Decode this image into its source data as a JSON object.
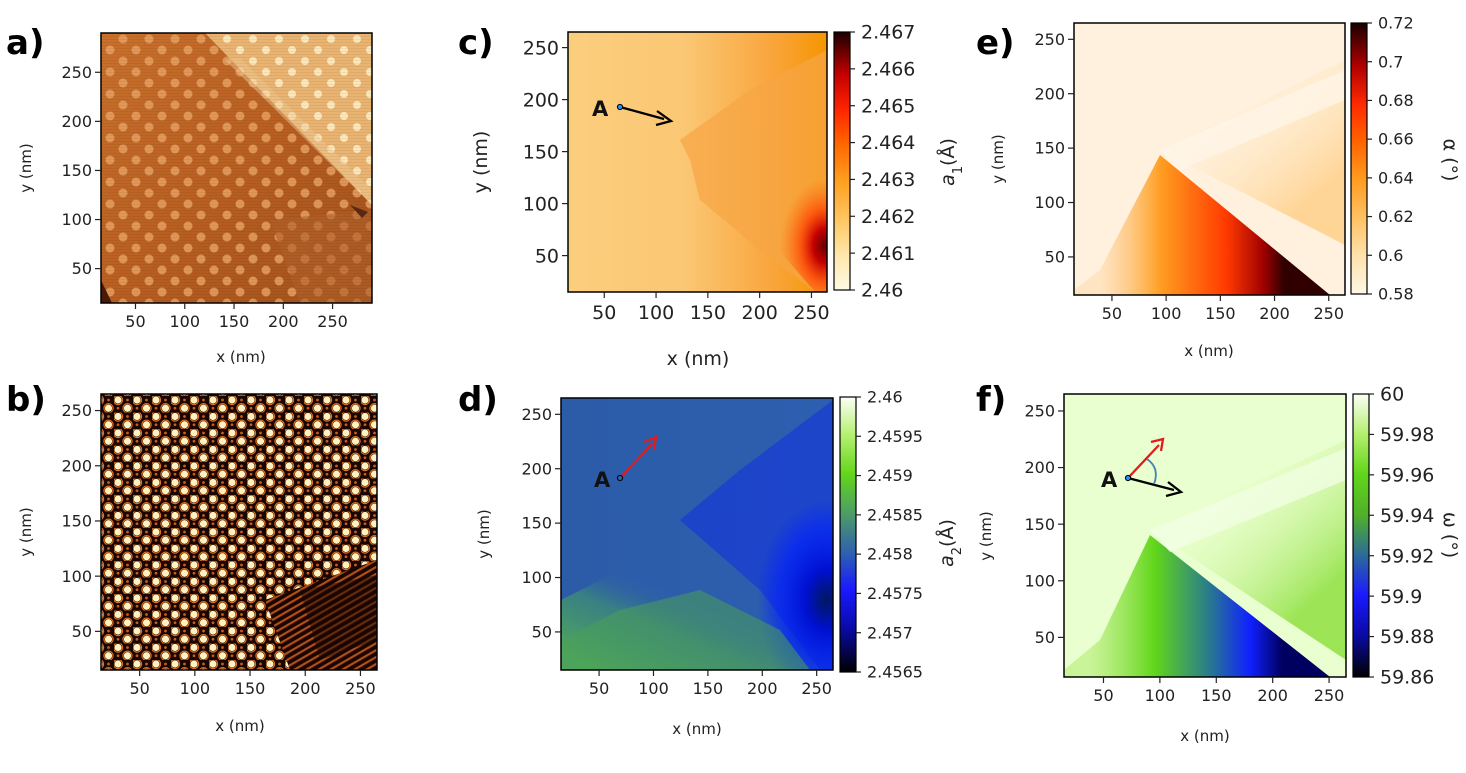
{
  "chart_data": [
    {
      "id": "a",
      "panel_label": "a)",
      "type": "heatmap",
      "description_kind": "stm_topography",
      "xlabel": "x (nm)",
      "ylabel": "y (nm)",
      "xlim": [
        15,
        290
      ],
      "ylim": [
        15,
        290
      ],
      "xticks": [
        50,
        100,
        150,
        200,
        250
      ],
      "yticks": [
        50,
        100,
        150,
        200,
        250
      ]
    },
    {
      "id": "b",
      "panel_label": "b)",
      "type": "heatmap",
      "description_kind": "filtered_moire",
      "xlabel": "x (nm)",
      "ylabel": "y (nm)",
      "xlim": [
        15,
        265
      ],
      "ylim": [
        15,
        265
      ],
      "xticks": [
        50,
        100,
        150,
        200,
        250
      ],
      "yticks": [
        50,
        100,
        150,
        200,
        250
      ]
    },
    {
      "id": "c",
      "panel_label": "c)",
      "type": "heatmap",
      "xlabel": "x (nm)",
      "ylabel": "y (nm)",
      "xlim": [
        15,
        265
      ],
      "ylim": [
        15,
        265
      ],
      "xticks": [
        50,
        100,
        150,
        200,
        250
      ],
      "yticks": [
        50,
        100,
        150,
        200,
        250
      ],
      "colorbar": {
        "label": "a1(Å)",
        "label_main": "a",
        "label_sub": "1",
        "label_unit": "(Å)",
        "ticks": [
          "2.46",
          "2.461",
          "2.462",
          "2.463",
          "2.464",
          "2.465",
          "2.466",
          "2.467"
        ],
        "range": [
          2.46,
          2.467
        ]
      },
      "point": {
        "label": "A",
        "x": 65,
        "y": 194
      },
      "arrows": [
        {
          "color": "#000000",
          "from": [
            65,
            194
          ],
          "to": [
            122,
            180
          ]
        }
      ]
    },
    {
      "id": "d",
      "panel_label": "d)",
      "type": "heatmap",
      "xlabel": "x (nm)",
      "ylabel": "y (nm)",
      "xlim": [
        15,
        265
      ],
      "ylim": [
        15,
        265
      ],
      "xticks": [
        50,
        100,
        150,
        200,
        250
      ],
      "yticks": [
        50,
        100,
        150,
        200,
        250
      ],
      "colorbar": {
        "label": "a2(Å)",
        "label_main": "a",
        "label_sub": "2",
        "label_unit": "(Å)",
        "ticks": [
          "2.4565",
          "2.457",
          "2.4575",
          "2.458",
          "2.4585",
          "2.459",
          "2.4595",
          "2.46"
        ],
        "range": [
          2.4565,
          2.46
        ]
      },
      "point": {
        "label": "A",
        "x": 70,
        "y": 193
      },
      "arrows": [
        {
          "color": "#e41a1c",
          "from": [
            70,
            193
          ],
          "to": [
            107,
            232
          ]
        }
      ]
    },
    {
      "id": "e",
      "panel_label": "e)",
      "type": "heatmap",
      "xlabel": "x (nm)",
      "ylabel": "y (nm)",
      "xlim": [
        15,
        265
      ],
      "ylim": [
        15,
        265
      ],
      "xticks": [
        50,
        100,
        150,
        200,
        250
      ],
      "yticks": [
        50,
        100,
        150,
        200,
        250
      ],
      "colorbar": {
        "label": "α (°)",
        "label_main": "α (°)",
        "ticks": [
          "0.58",
          "0.6",
          "0.62",
          "0.64",
          "0.66",
          "0.68",
          "0.7",
          "0.72"
        ],
        "range": [
          0.58,
          0.72
        ]
      }
    },
    {
      "id": "f",
      "panel_label": "f)",
      "type": "heatmap",
      "xlabel": "x (nm)",
      "ylabel": "y (nm)",
      "xlim": [
        15,
        265
      ],
      "ylim": [
        15,
        265
      ],
      "xticks": [
        50,
        100,
        150,
        200,
        250
      ],
      "yticks": [
        50,
        100,
        150,
        200,
        250
      ],
      "colorbar": {
        "label": "ω (°)",
        "label_main": "ω (°)",
        "ticks": [
          "59.86",
          "59.88",
          "59.9",
          "59.92",
          "59.94",
          "59.96",
          "59.98",
          "60"
        ],
        "range": [
          59.86,
          60
        ]
      },
      "point": {
        "label": "A",
        "x": 72,
        "y": 193
      },
      "arrows": [
        {
          "color": "#e41a1c",
          "from": [
            72,
            193
          ],
          "to": [
            104,
            230
          ]
        },
        {
          "color": "#000000",
          "from": [
            72,
            193
          ],
          "to": [
            123,
            178
          ]
        }
      ]
    }
  ]
}
